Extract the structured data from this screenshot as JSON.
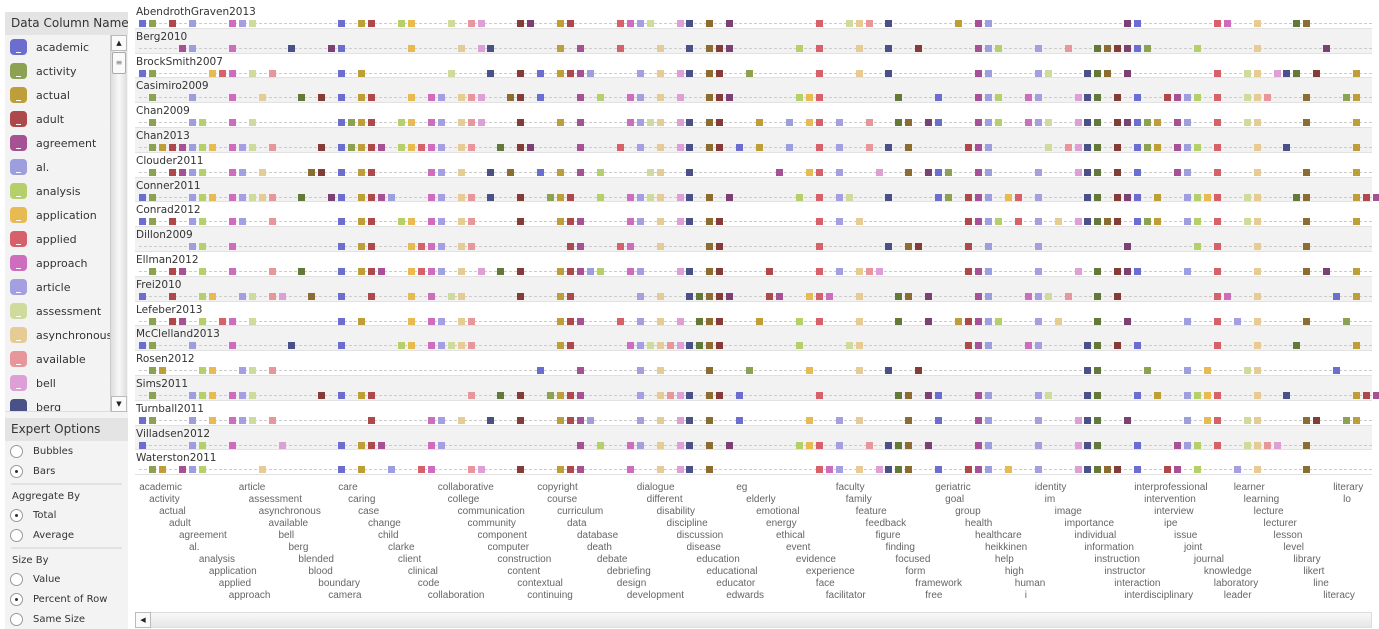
{
  "panel": {
    "title": "Data Column Name",
    "expert_title": "Expert Options",
    "chart_type": {
      "options": [
        "Bubbles",
        "Bars"
      ],
      "selected": "Bars"
    },
    "aggregate": {
      "label": "Aggregate By",
      "options": [
        "Total",
        "Average"
      ],
      "selected": "Total"
    },
    "size": {
      "label": "Size By",
      "options": [
        "Value",
        "Percent of Row",
        "Same Size"
      ],
      "selected": "Percent of Row"
    }
  },
  "palette": [
    "#6b6ecf",
    "#8ca252",
    "#bd9e39",
    "#ad494a",
    "#a55194",
    "#9c9ede",
    "#b5cf6b",
    "#e7ba52",
    "#d6616b",
    "#ce6dbd",
    "#a39fe0",
    "#cedb9c",
    "#e7cb94",
    "#e7969c",
    "#de9ed6",
    "#4a5088",
    "#637939",
    "#8c6d31",
    "#843c39",
    "#7b4173"
  ],
  "legend_items": [
    "academic",
    "activity",
    "actual",
    "adult",
    "agreement",
    "al.",
    "analysis",
    "application",
    "applied",
    "approach",
    "article",
    "assessment",
    "asynchronous",
    "available",
    "bell",
    "berg"
  ],
  "columns": [
    "academic",
    "activity",
    "actual",
    "adult",
    "agreement",
    "al.",
    "analysis",
    "application",
    "applied",
    "approach",
    "article",
    "assessment",
    "asynchronous",
    "available",
    "bell",
    "berg",
    "blended",
    "blood",
    "boundary",
    "camera",
    "care",
    "caring",
    "case",
    "change",
    "child",
    "clarke",
    "client",
    "clinical",
    "code",
    "collaboration",
    "collaborative",
    "college",
    "communication",
    "community",
    "component",
    "computer",
    "construction",
    "content",
    "contextual",
    "continuing",
    "copyright",
    "course",
    "curriculum",
    "data",
    "database",
    "death",
    "debate",
    "debriefing",
    "design",
    "development",
    "dialogue",
    "different",
    "disability",
    "discipline",
    "discussion",
    "disease",
    "education",
    "educational",
    "educator",
    "edwards",
    "eg",
    "elderly",
    "emotional",
    "energy",
    "ethical",
    "event",
    "evidence",
    "experience",
    "face",
    "facilitator",
    "faculty",
    "family",
    "feature",
    "feedback",
    "figure",
    "finding",
    "focused",
    "form",
    "framework",
    "free",
    "geriatric",
    "goal",
    "group",
    "health",
    "healthcare",
    "heikkinen",
    "help",
    "high",
    "human",
    "i",
    "identity",
    "im",
    "image",
    "importance",
    "individual",
    "information",
    "instruction",
    "instructor",
    "interaction",
    "interdisciplinary",
    "interprofessional",
    "intervention",
    "interview",
    "ipe",
    "issue",
    "joint",
    "journal",
    "knowledge",
    "laboratory",
    "leader",
    "learner",
    "learning",
    "lecture",
    "lecturer",
    "lesson",
    "level",
    "library",
    "likert",
    "line",
    "literacy",
    "literary",
    "lo"
  ],
  "rows": [
    {
      "name": "AbendrothGraven2013",
      "cols": [
        0,
        1,
        3,
        5,
        9,
        10,
        11,
        20,
        22,
        23,
        26,
        27,
        31,
        33,
        34,
        38,
        39,
        42,
        43,
        48,
        49,
        50,
        51,
        54,
        55,
        57,
        59,
        68,
        71,
        72,
        73,
        75,
        82,
        84,
        85,
        99,
        100,
        108,
        109,
        112,
        116,
        117
      ]
    },
    {
      "name": "Berg2010",
      "cols": [
        4,
        5,
        9,
        15,
        19,
        20,
        27,
        32,
        34,
        35,
        42,
        44,
        48,
        52,
        55,
        57,
        58,
        59,
        66,
        68,
        72,
        75,
        78,
        84,
        85,
        86,
        90,
        93,
        96,
        97,
        98,
        99,
        100,
        101,
        106,
        112,
        119
      ]
    },
    {
      "name": "BrockSmith2007",
      "cols": [
        0,
        1,
        7,
        8,
        9,
        11,
        13,
        20,
        22,
        31,
        35,
        38,
        40,
        42,
        43,
        44,
        45,
        50,
        52,
        54,
        55,
        57,
        58,
        61,
        68,
        72,
        75,
        84,
        85,
        90,
        91,
        95,
        96,
        97,
        99,
        108,
        111,
        112,
        114,
        115,
        116,
        118,
        122
      ]
    },
    {
      "name": "Casimiro2009",
      "cols": [
        1,
        5,
        9,
        12,
        16,
        18,
        20,
        22,
        23,
        27,
        29,
        30,
        32,
        33,
        34,
        37,
        38,
        40,
        44,
        46,
        49,
        50,
        52,
        54,
        57,
        58,
        59,
        66,
        67,
        68,
        76,
        80,
        84,
        85,
        86,
        89,
        90,
        94,
        95,
        96,
        98,
        100,
        103,
        104,
        105,
        106,
        108,
        111,
        112,
        113,
        117,
        121,
        122
      ]
    },
    {
      "name": "Chan2009",
      "cols": [
        1,
        5,
        6,
        9,
        11,
        20,
        21,
        22,
        23,
        26,
        27,
        29,
        30,
        32,
        33,
        34,
        38,
        42,
        44,
        49,
        50,
        51,
        52,
        54,
        55,
        57,
        58,
        62,
        65,
        67,
        68,
        70,
        73,
        76,
        77,
        79,
        80,
        84,
        85,
        86,
        89,
        90,
        91,
        94,
        95,
        96,
        98,
        99,
        100,
        101,
        102,
        104,
        105,
        108,
        111,
        112,
        117,
        122
      ]
    },
    {
      "name": "Chan2013",
      "cols": [
        1,
        2,
        3,
        4,
        5,
        6,
        7,
        9,
        10,
        11,
        13,
        18,
        20,
        21,
        22,
        23,
        24,
        26,
        27,
        28,
        29,
        30,
        32,
        33,
        36,
        38,
        39,
        44,
        48,
        50,
        52,
        54,
        55,
        57,
        58,
        60,
        62,
        65,
        68,
        70,
        73,
        75,
        77,
        83,
        84,
        85,
        91,
        93,
        94,
        95,
        96,
        98,
        100,
        101,
        102,
        104,
        105,
        106,
        108,
        112,
        115,
        122
      ]
    },
    {
      "name": "Clouder2011",
      "cols": [
        1,
        3,
        4,
        5,
        6,
        9,
        10,
        12,
        17,
        18,
        20,
        22,
        23,
        29,
        30,
        32,
        35,
        37,
        40,
        42,
        44,
        46,
        51,
        52,
        55,
        64,
        67,
        68,
        70,
        74,
        77,
        79,
        80,
        81,
        84,
        85,
        90,
        94,
        95,
        96,
        98,
        100,
        104,
        105,
        108,
        112,
        117,
        122
      ]
    },
    {
      "name": "Conner2011",
      "cols": [
        0,
        1,
        5,
        6,
        7,
        9,
        10,
        11,
        12,
        13,
        16,
        19,
        20,
        22,
        23,
        24,
        25,
        29,
        30,
        32,
        33,
        35,
        38,
        41,
        42,
        43,
        46,
        49,
        50,
        51,
        52,
        54,
        55,
        57,
        59,
        66,
        68,
        70,
        71,
        75,
        80,
        81,
        83,
        84,
        85,
        87,
        88,
        90,
        95,
        96,
        98,
        99,
        100,
        102,
        105,
        106,
        107,
        108,
        111,
        112,
        116,
        117,
        122,
        123,
        124
      ]
    },
    {
      "name": "Conrad2012",
      "cols": [
        0,
        1,
        3,
        5,
        6,
        9,
        10,
        13,
        20,
        22,
        23,
        26,
        27,
        29,
        30,
        32,
        33,
        38,
        42,
        43,
        44,
        49,
        50,
        52,
        54,
        55,
        57,
        58,
        68,
        70,
        72,
        83,
        84,
        85,
        86,
        88,
        90,
        92,
        94,
        95,
        96,
        97,
        98,
        100,
        101,
        102,
        105,
        106,
        108,
        111,
        112,
        117,
        122
      ]
    },
    {
      "name": "Dillon2009",
      "cols": [
        5,
        6,
        9,
        20,
        22,
        23,
        27,
        28,
        29,
        30,
        32,
        33,
        43,
        44,
        48,
        49,
        52,
        57,
        58,
        68,
        75,
        77,
        78,
        83,
        85,
        90,
        99,
        106,
        108,
        112,
        117
      ]
    },
    {
      "name": "Ellman2012",
      "cols": [
        1,
        3,
        4,
        6,
        9,
        13,
        16,
        20,
        22,
        23,
        24,
        27,
        28,
        29,
        30,
        32,
        34,
        36,
        38,
        42,
        43,
        44,
        45,
        46,
        49,
        50,
        54,
        55,
        57,
        58,
        63,
        68,
        70,
        72,
        73,
        74,
        83,
        84,
        85,
        90,
        94,
        96,
        98,
        99,
        100,
        105,
        108,
        112,
        117,
        119,
        122
      ]
    },
    {
      "name": "Frei2010",
      "cols": [
        0,
        3,
        6,
        7,
        10,
        11,
        13,
        14,
        17,
        20,
        23,
        27,
        29,
        31,
        32,
        38,
        42,
        43,
        50,
        52,
        55,
        56,
        57,
        58,
        59,
        63,
        64,
        67,
        68,
        69,
        72,
        76,
        77,
        79,
        84,
        85,
        89,
        90,
        91,
        93,
        96,
        98,
        108,
        109,
        112,
        120,
        122
      ]
    },
    {
      "name": "Lefeber2013",
      "cols": [
        1,
        3,
        4,
        6,
        8,
        9,
        11,
        20,
        22,
        27,
        29,
        30,
        32,
        33,
        42,
        43,
        44,
        48,
        50,
        52,
        54,
        56,
        57,
        58,
        62,
        66,
        68,
        72,
        76,
        79,
        82,
        83,
        84,
        85,
        86,
        90,
        92,
        96,
        99,
        105,
        108,
        110,
        112,
        117,
        121
      ]
    },
    {
      "name": "McClelland2013",
      "cols": [
        0,
        1,
        5,
        9,
        15,
        20,
        26,
        27,
        29,
        30,
        31,
        32,
        33,
        42,
        43,
        49,
        50,
        51,
        52,
        53,
        54,
        55,
        56,
        57,
        58,
        66,
        71,
        72,
        83,
        84,
        85,
        89,
        90,
        95,
        96,
        98,
        100,
        108,
        112,
        116,
        122
      ]
    },
    {
      "name": "Rosen2012",
      "cols": [
        1,
        2,
        6,
        7,
        10,
        11,
        13,
        40,
        44,
        50,
        52,
        57,
        61,
        67,
        72,
        75,
        78,
        95,
        96,
        101,
        105,
        107,
        111,
        112,
        120
      ]
    },
    {
      "name": "Sims2011",
      "cols": [
        1,
        5,
        6,
        7,
        9,
        10,
        11,
        18,
        20,
        22,
        23,
        33,
        36,
        38,
        41,
        42,
        43,
        44,
        50,
        52,
        53,
        54,
        55,
        57,
        58,
        60,
        68,
        76,
        77,
        79,
        80,
        84,
        85,
        90,
        91,
        95,
        96,
        100,
        102,
        105,
        106,
        107,
        108,
        112,
        115,
        122,
        123,
        124
      ]
    },
    {
      "name": "Turnball2011",
      "cols": [
        0,
        1,
        5,
        7,
        9,
        10,
        11,
        13,
        23,
        29,
        30,
        32,
        35,
        38,
        42,
        43,
        44,
        45,
        50,
        52,
        54,
        55,
        57,
        60,
        67,
        70,
        72,
        77,
        80,
        84,
        85,
        90,
        94,
        95,
        96,
        99,
        105,
        107,
        108,
        111,
        112,
        117,
        118,
        121,
        122
      ]
    },
    {
      "name": "Villadsen2012",
      "cols": [
        0,
        5,
        6,
        9,
        14,
        20,
        22,
        23,
        24,
        29,
        30,
        44,
        46,
        49,
        50,
        52,
        54,
        55,
        57,
        59,
        66,
        67,
        68,
        70,
        73,
        75,
        76,
        77,
        79,
        84,
        85,
        90,
        94,
        95,
        96,
        100,
        104,
        105,
        106,
        108,
        111,
        112,
        113,
        114,
        117
      ]
    },
    {
      "name": "Waterston2011",
      "cols": [
        1,
        2,
        4,
        5,
        6,
        12,
        20,
        22,
        25,
        28,
        29,
        33,
        34,
        38,
        42,
        43,
        44,
        49,
        52,
        54,
        55,
        57,
        68,
        69,
        70,
        72,
        74,
        75,
        76,
        77,
        80,
        83,
        84,
        85,
        87,
        90,
        94,
        95,
        96,
        97,
        98,
        100,
        103,
        104,
        106,
        110,
        112,
        117
      ]
    }
  ]
}
